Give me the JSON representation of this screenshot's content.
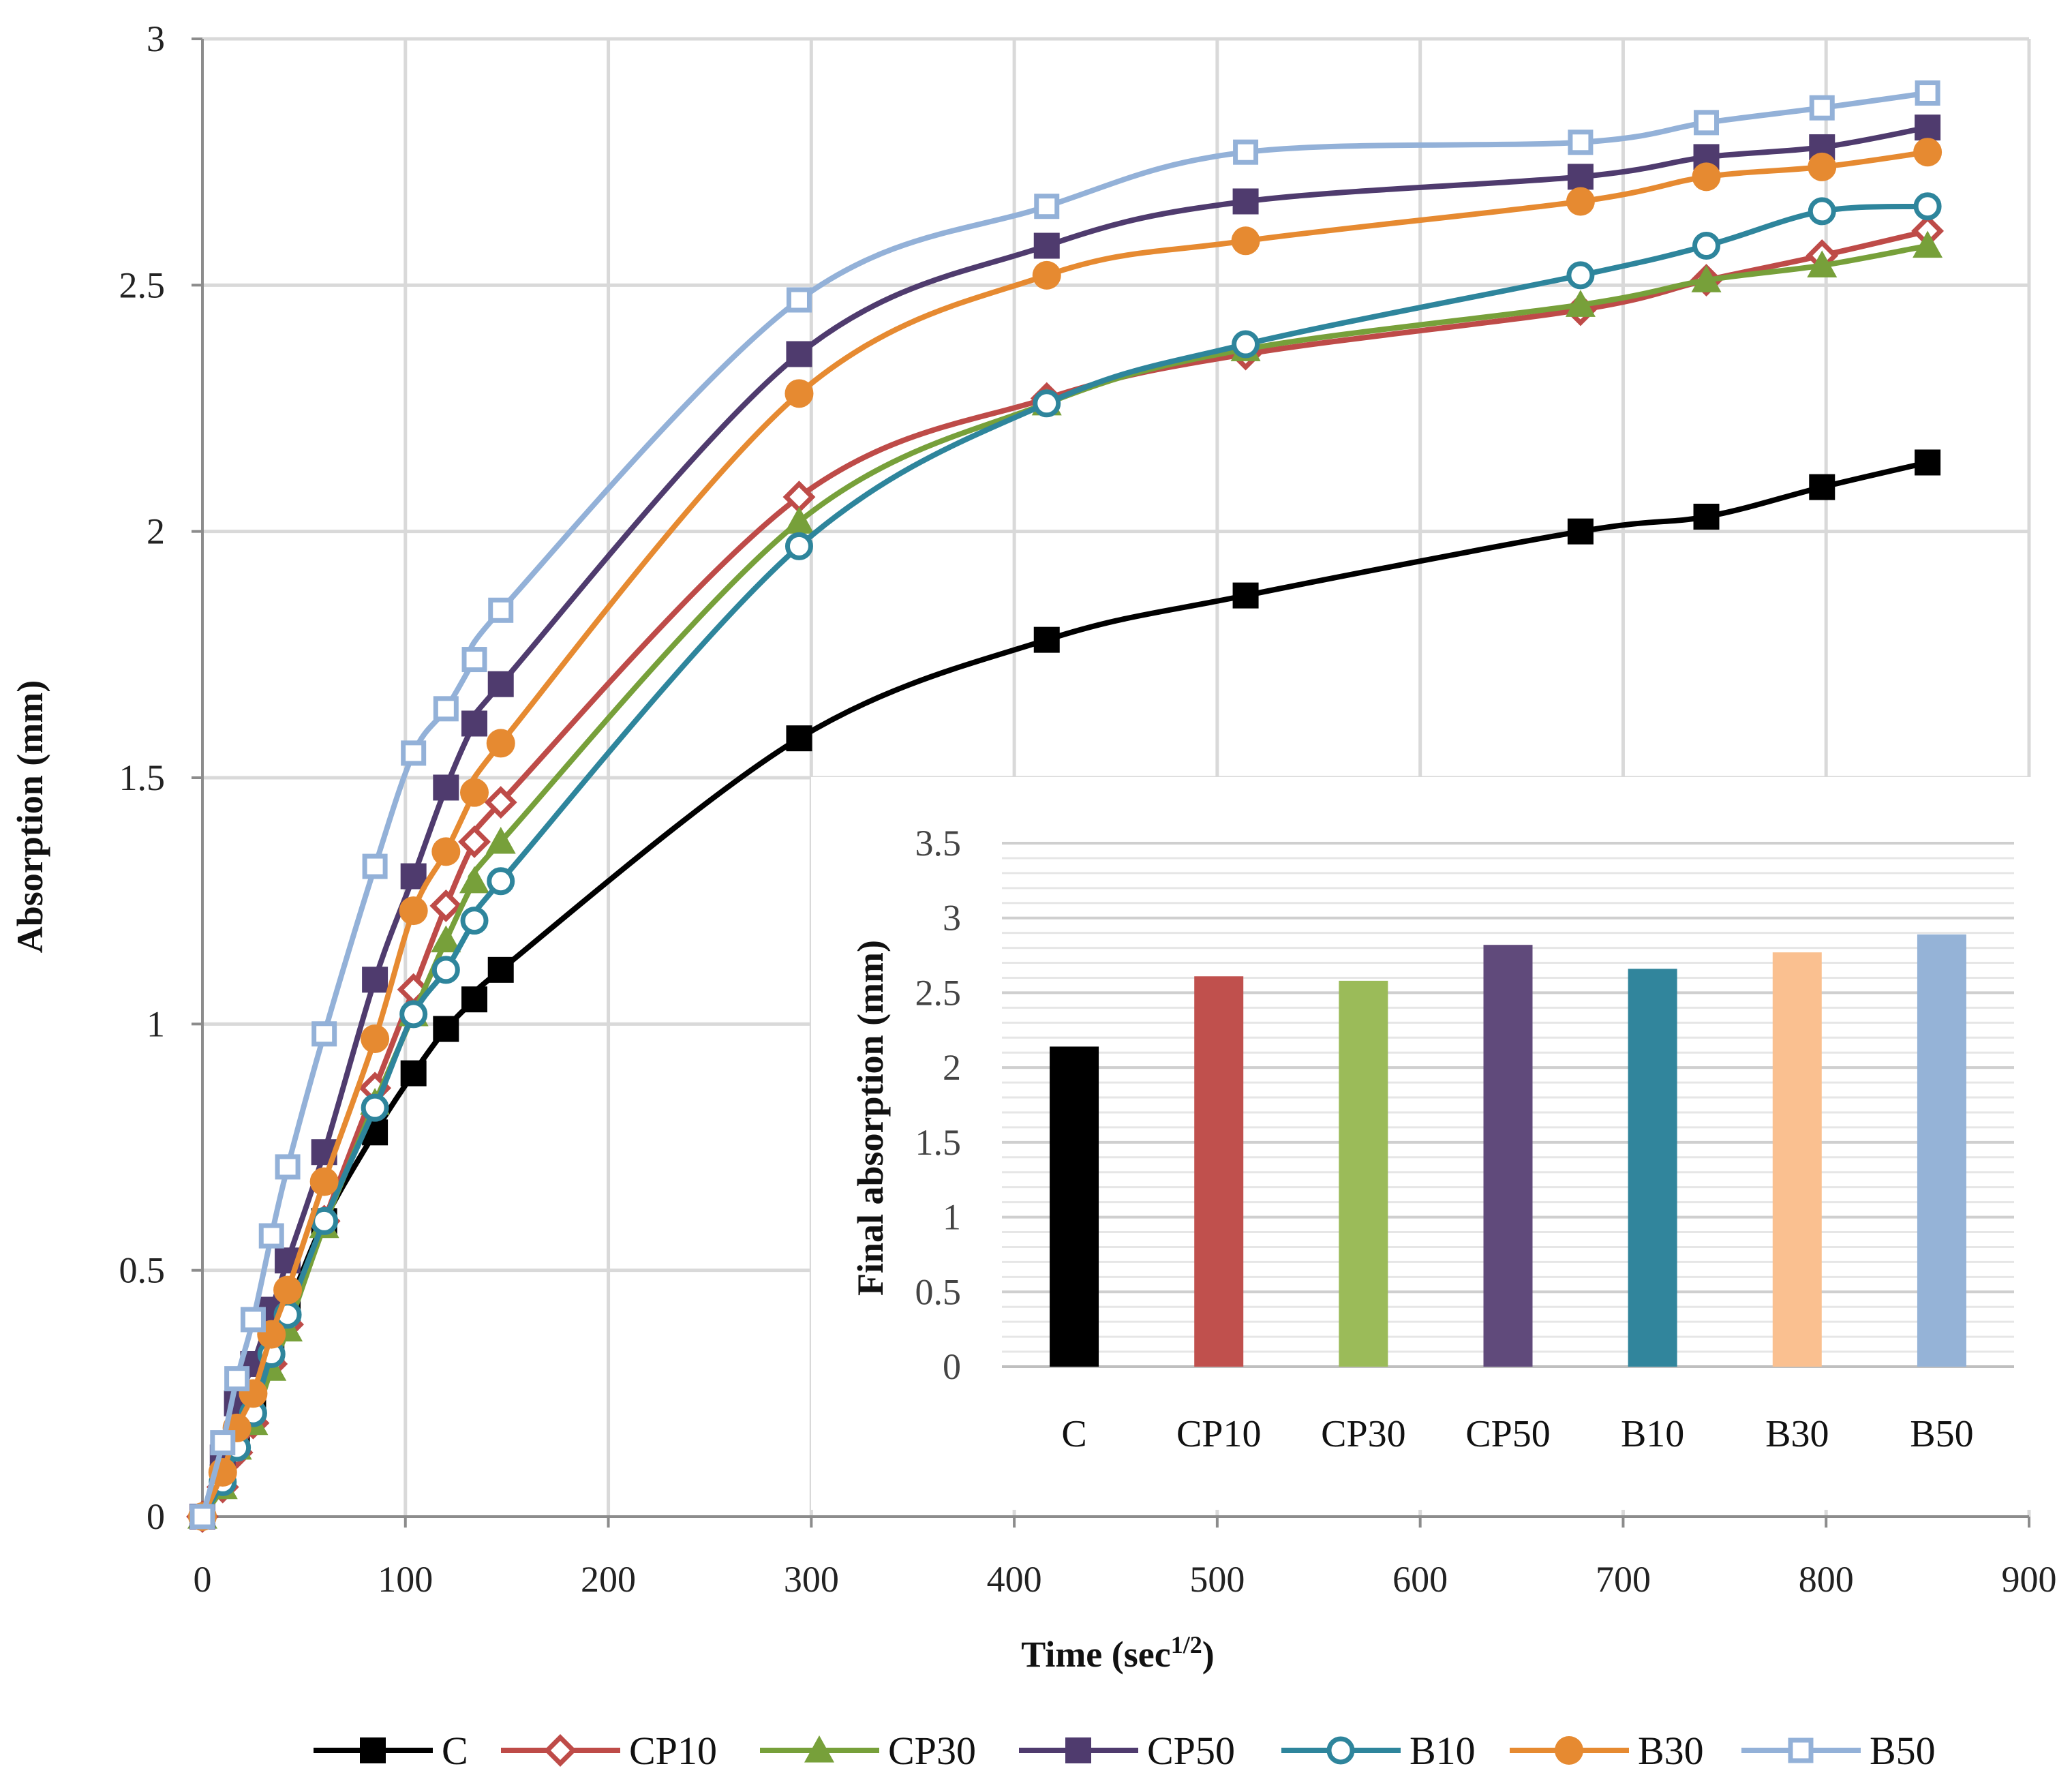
{
  "chart_data": [
    {
      "type": "line",
      "xlabel": "Time (sec",
      "xlabel_sup": "1/2",
      "xlabel_close": ")",
      "ylabel": "Absorption (mm)",
      "xlim": [
        0,
        900
      ],
      "ylim": [
        0,
        3
      ],
      "xticks": [
        0,
        100,
        200,
        300,
        400,
        500,
        600,
        700,
        800,
        900
      ],
      "yticks": [
        0,
        0.5,
        1,
        1.5,
        2,
        2.5,
        3
      ],
      "ytick_labels": [
        "0",
        "0.5",
        "1",
        "1.5",
        "2",
        "2.5",
        "3"
      ],
      "grid": true,
      "legend_position": "bottom",
      "x": [
        0,
        10,
        17,
        25,
        34,
        42,
        60,
        85,
        104,
        120,
        134,
        147,
        294,
        416,
        514,
        679,
        741,
        798,
        850
      ],
      "series": [
        {
          "name": "C",
          "color": "#000000",
          "marker": "square-filled",
          "values": [
            0,
            0.08,
            0.16,
            0.24,
            0.33,
            0.42,
            0.6,
            0.78,
            0.9,
            0.99,
            1.05,
            1.11,
            1.58,
            1.78,
            1.87,
            2.0,
            2.03,
            2.09,
            2.14
          ]
        },
        {
          "name": "CP10",
          "color": "#BE4B48",
          "marker": "diamond-open",
          "values": [
            0,
            0.06,
            0.13,
            0.19,
            0.31,
            0.39,
            0.6,
            0.87,
            1.07,
            1.24,
            1.37,
            1.45,
            2.07,
            2.27,
            2.36,
            2.45,
            2.51,
            2.56,
            2.61
          ]
        },
        {
          "name": "CP30",
          "color": "#77A03A",
          "marker": "triangle-filled",
          "values": [
            0,
            0.06,
            0.14,
            0.19,
            0.3,
            0.38,
            0.59,
            0.84,
            1.02,
            1.17,
            1.29,
            1.37,
            2.02,
            2.26,
            2.37,
            2.46,
            2.51,
            2.54,
            2.58
          ]
        },
        {
          "name": "CP50",
          "color": "#4F3B6E",
          "marker": "square-filled",
          "values": [
            0,
            0.12,
            0.23,
            0.31,
            0.42,
            0.52,
            0.74,
            1.09,
            1.3,
            1.48,
            1.61,
            1.69,
            2.36,
            2.58,
            2.67,
            2.72,
            2.76,
            2.78,
            2.82
          ]
        },
        {
          "name": "B10",
          "color": "#2E859C",
          "marker": "circle-open",
          "values": [
            0,
            0.07,
            0.14,
            0.21,
            0.33,
            0.41,
            0.6,
            0.83,
            1.02,
            1.11,
            1.21,
            1.29,
            1.97,
            2.26,
            2.38,
            2.52,
            2.58,
            2.65,
            2.66
          ]
        },
        {
          "name": "B30",
          "color": "#E68A31",
          "marker": "circle-filled",
          "values": [
            0,
            0.09,
            0.18,
            0.25,
            0.37,
            0.46,
            0.68,
            0.97,
            1.23,
            1.35,
            1.47,
            1.57,
            2.28,
            2.52,
            2.59,
            2.67,
            2.72,
            2.74,
            2.77
          ]
        },
        {
          "name": "B50",
          "color": "#93B1D8",
          "marker": "square-open",
          "values": [
            0,
            0.15,
            0.28,
            0.4,
            0.57,
            0.71,
            0.98,
            1.32,
            1.55,
            1.64,
            1.74,
            1.84,
            2.47,
            2.66,
            2.77,
            2.79,
            2.83,
            2.86,
            2.89
          ]
        }
      ]
    },
    {
      "type": "bar",
      "title": "",
      "ylabel": "Final absorption (mm)",
      "xlabel": "",
      "ylim": [
        0,
        3.5
      ],
      "yticks": [
        0,
        0.5,
        1,
        1.5,
        2,
        2.5,
        3,
        3.5
      ],
      "ytick_labels": [
        "0",
        "0.5",
        "1",
        "1.5",
        "2",
        "2.5",
        "3",
        "3.5"
      ],
      "categories": [
        "C",
        "CP10",
        "CP30",
        "CP50",
        "B10",
        "B30",
        "B50"
      ],
      "values": [
        2.14,
        2.61,
        2.58,
        2.82,
        2.66,
        2.77,
        2.89
      ],
      "colors": [
        "#000000",
        "#C0504D",
        "#9BBB59",
        "#604A7B",
        "#31859C",
        "#FAC090",
        "#95B3D7"
      ],
      "grid": true
    }
  ]
}
